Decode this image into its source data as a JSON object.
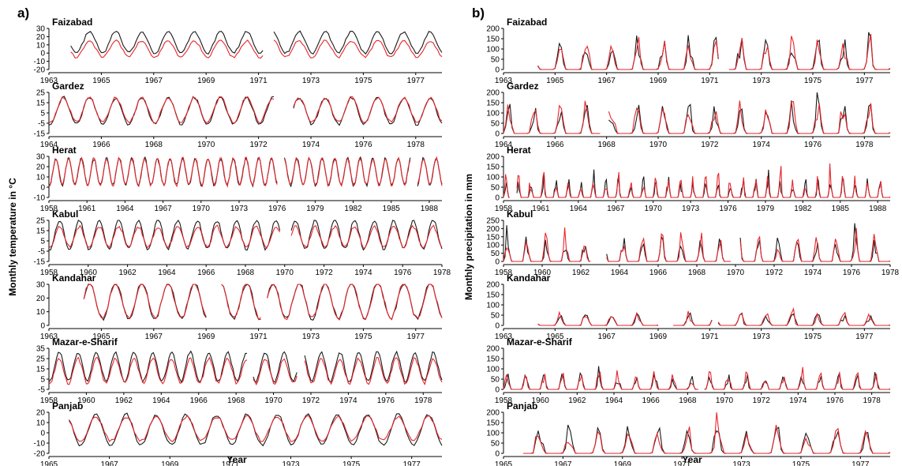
{
  "panels": [
    {
      "label": "a)",
      "ylabel": "Monthly temperature in °C",
      "xlabel": "Year"
    },
    {
      "label": "b)",
      "ylabel": "Monthly precipitation in mm",
      "xlabel": "Year"
    }
  ],
  "series_colors": {
    "observed": "#1a1a1a",
    "modelled": "#e8252b"
  },
  "chart_data": [
    {
      "type": "line",
      "panel": "a",
      "station": "Faizabad",
      "variable": "temperature",
      "ylim": [
        -20,
        30
      ],
      "yticks": [
        -20,
        -10,
        0,
        10,
        20,
        30
      ],
      "xlim": [
        1963,
        1978
      ],
      "xticks": [
        1963,
        1965,
        1967,
        1969,
        1971,
        1973,
        1975,
        1977
      ],
      "observed": {
        "mean": 13,
        "amp": 13
      },
      "modelled": {
        "mean": 5,
        "amp": 10
      },
      "gaps": [
        [
          1963,
          1963.8
        ],
        [
          1971.2,
          1971.5
        ]
      ]
    },
    {
      "type": "line",
      "panel": "a",
      "station": "Gardez",
      "variable": "temperature",
      "ylim": [
        -15,
        25
      ],
      "yticks": [
        -15,
        -5,
        5,
        15,
        25
      ],
      "xlim": [
        1964,
        1979
      ],
      "xticks": [
        1964,
        1966,
        1968,
        1970,
        1972,
        1974,
        1976,
        1978
      ],
      "observed": {
        "mean": 7,
        "amp": 13
      },
      "modelled": {
        "mean": 8,
        "amp": 12
      },
      "gaps": [
        [
          1972.6,
          1973.3
        ]
      ]
    },
    {
      "type": "line",
      "panel": "a",
      "station": "Herat",
      "variable": "temperature",
      "ylim": [
        -10,
        30
      ],
      "yticks": [
        -10,
        0,
        10,
        20,
        30
      ],
      "xlim": [
        1958,
        1989
      ],
      "xticks": [
        1958,
        1961,
        1964,
        1967,
        1970,
        1973,
        1976,
        1979,
        1982,
        1985,
        1988
      ],
      "observed": {
        "mean": 15,
        "amp": 13
      },
      "modelled": {
        "mean": 15,
        "amp": 13
      },
      "gaps": [
        [
          1976,
          1976.5
        ],
        [
          1986.5,
          1987
        ]
      ]
    },
    {
      "type": "line",
      "panel": "a",
      "station": "Kabul",
      "variable": "temperature",
      "ylim": [
        -15,
        25
      ],
      "yticks": [
        -15,
        -5,
        5,
        15,
        25
      ],
      "xlim": [
        1958,
        1978
      ],
      "xticks": [
        1958,
        1960,
        1962,
        1964,
        1966,
        1968,
        1970,
        1972,
        1974,
        1976,
        1978
      ],
      "observed": {
        "mean": 11,
        "amp": 14
      },
      "modelled": {
        "mean": 9,
        "amp": 10
      },
      "gaps": [
        [
          1969.8,
          1970.3
        ]
      ]
    },
    {
      "type": "line",
      "panel": "a",
      "station": "Kandahar",
      "variable": "temperature",
      "ylim": [
        0,
        30
      ],
      "yticks": [
        0,
        10,
        20,
        30
      ],
      "xlim": [
        1963,
        1978
      ],
      "xticks": [
        1963,
        1965,
        1967,
        1969,
        1971,
        1973,
        1975,
        1977
      ],
      "observed": {
        "mean": 18,
        "amp": 13
      },
      "modelled": {
        "mean": 18,
        "amp": 13
      },
      "gaps": [
        [
          1963,
          1964.3
        ],
        [
          1969,
          1969.5
        ],
        [
          1971.1,
          1971.3
        ]
      ]
    },
    {
      "type": "line",
      "panel": "a",
      "station": "Mazar-e-Sharif",
      "variable": "temperature",
      "ylim": [
        -5,
        35
      ],
      "yticks": [
        -5,
        5,
        15,
        25,
        35
      ],
      "xlim": [
        1958,
        1979
      ],
      "xticks": [
        1958,
        1960,
        1962,
        1964,
        1966,
        1968,
        1970,
        1972,
        1974,
        1976,
        1978
      ],
      "observed": {
        "mean": 17,
        "amp": 14
      },
      "modelled": {
        "mean": 13,
        "amp": 12
      },
      "gaps": [
        [
          1968.6,
          1968.9
        ],
        [
          1971.3,
          1971.6
        ]
      ]
    },
    {
      "type": "line",
      "panel": "a",
      "station": "Panjab",
      "variable": "temperature",
      "ylim": [
        -20,
        20
      ],
      "yticks": [
        -20,
        -10,
        0,
        10,
        20
      ],
      "xlim": [
        1965,
        1978
      ],
      "xticks": [
        1965,
        1967,
        1969,
        1971,
        1973,
        1975,
        1977
      ],
      "observed": {
        "mean": 3,
        "amp": 15
      },
      "modelled": {
        "mean": 4,
        "amp": 12
      },
      "gaps": [
        [
          1965,
          1965.6
        ]
      ]
    },
    {
      "type": "line",
      "panel": "b",
      "station": "Faizabad",
      "variable": "precipitation",
      "ylim": [
        0,
        200
      ],
      "yticks": [
        0,
        50,
        100,
        150,
        200
      ],
      "xlim": [
        1963,
        1978
      ],
      "xticks": [
        1963,
        1965,
        1967,
        1969,
        1971,
        1973,
        1975,
        1977
      ],
      "observed": {
        "peak": 120
      },
      "modelled": {
        "peak": 130
      },
      "gaps": [
        [
          1963,
          1964.3
        ],
        [
          1971.4,
          1971.7
        ]
      ]
    },
    {
      "type": "line",
      "panel": "b",
      "station": "Gardez",
      "variable": "precipitation",
      "ylim": [
        0,
        200
      ],
      "yticks": [
        0,
        50,
        100,
        150,
        200
      ],
      "xlim": [
        1964,
        1979
      ],
      "xticks": [
        1964,
        1966,
        1968,
        1970,
        1972,
        1974,
        1976,
        1978
      ],
      "observed": {
        "peak": 110
      },
      "modelled": {
        "peak": 120
      },
      "gaps": [
        [
          1967.8,
          1968
        ]
      ]
    },
    {
      "type": "line",
      "panel": "b",
      "station": "Herat",
      "variable": "precipitation",
      "ylim": [
        0,
        200
      ],
      "yticks": [
        0,
        50,
        100,
        150,
        200
      ],
      "xlim": [
        1958,
        1989
      ],
      "xticks": [
        1958,
        1961,
        1964,
        1967,
        1970,
        1973,
        1976,
        1979,
        1982,
        1985,
        1988
      ],
      "observed": {
        "peak": 70
      },
      "modelled": {
        "peak": 80
      },
      "gaps": [
        [
          1958.5,
          1959
        ]
      ]
    },
    {
      "type": "line",
      "panel": "b",
      "station": "Kabul",
      "variable": "precipitation",
      "ylim": [
        0,
        250
      ],
      "yticks": [
        0,
        50,
        100,
        150,
        200,
        250
      ],
      "xlim": [
        1958,
        1978
      ],
      "xticks": [
        1958,
        1960,
        1962,
        1964,
        1966,
        1968,
        1970,
        1972,
        1974,
        1976,
        1978
      ],
      "observed": {
        "peak": 110
      },
      "modelled": {
        "peak": 130
      },
      "gaps": [
        [
          1962.5,
          1963.3
        ],
        [
          1969.8,
          1970.2
        ]
      ]
    },
    {
      "type": "line",
      "panel": "b",
      "station": "Kandahar",
      "variable": "precipitation",
      "ylim": [
        0,
        200
      ],
      "yticks": [
        0,
        50,
        100,
        150,
        200
      ],
      "xlim": [
        1963,
        1978
      ],
      "xticks": [
        1963,
        1965,
        1967,
        1969,
        1971,
        1973,
        1975,
        1977
      ],
      "observed": {
        "peak": 45
      },
      "modelled": {
        "peak": 50
      },
      "gaps": [
        [
          1963,
          1964.3
        ],
        [
          1969,
          1969.5
        ],
        [
          1971.1,
          1971.3
        ]
      ]
    },
    {
      "type": "line",
      "panel": "b",
      "station": "Mazar-e-Sharif",
      "variable": "precipitation",
      "ylim": [
        0,
        200
      ],
      "yticks": [
        0,
        50,
        100,
        150,
        200
      ],
      "xlim": [
        1958,
        1979
      ],
      "xticks": [
        1958,
        1960,
        1962,
        1964,
        1966,
        1968,
        1970,
        1972,
        1974,
        1976,
        1978
      ],
      "observed": {
        "peak": 60
      },
      "modelled": {
        "peak": 65
      },
      "gaps": [
        [
          1968.6,
          1968.9
        ]
      ]
    },
    {
      "type": "line",
      "panel": "b",
      "station": "Panjab",
      "variable": "precipitation",
      "ylim": [
        0,
        200
      ],
      "yticks": [
        0,
        50,
        100,
        150,
        200
      ],
      "xlim": [
        1965,
        1978
      ],
      "xticks": [
        1965,
        1967,
        1969,
        1971,
        1973,
        1975,
        1977
      ],
      "observed": {
        "peak": 100
      },
      "modelled": {
        "peak": 105
      },
      "gaps": [
        [
          1965,
          1965.6
        ]
      ]
    }
  ]
}
